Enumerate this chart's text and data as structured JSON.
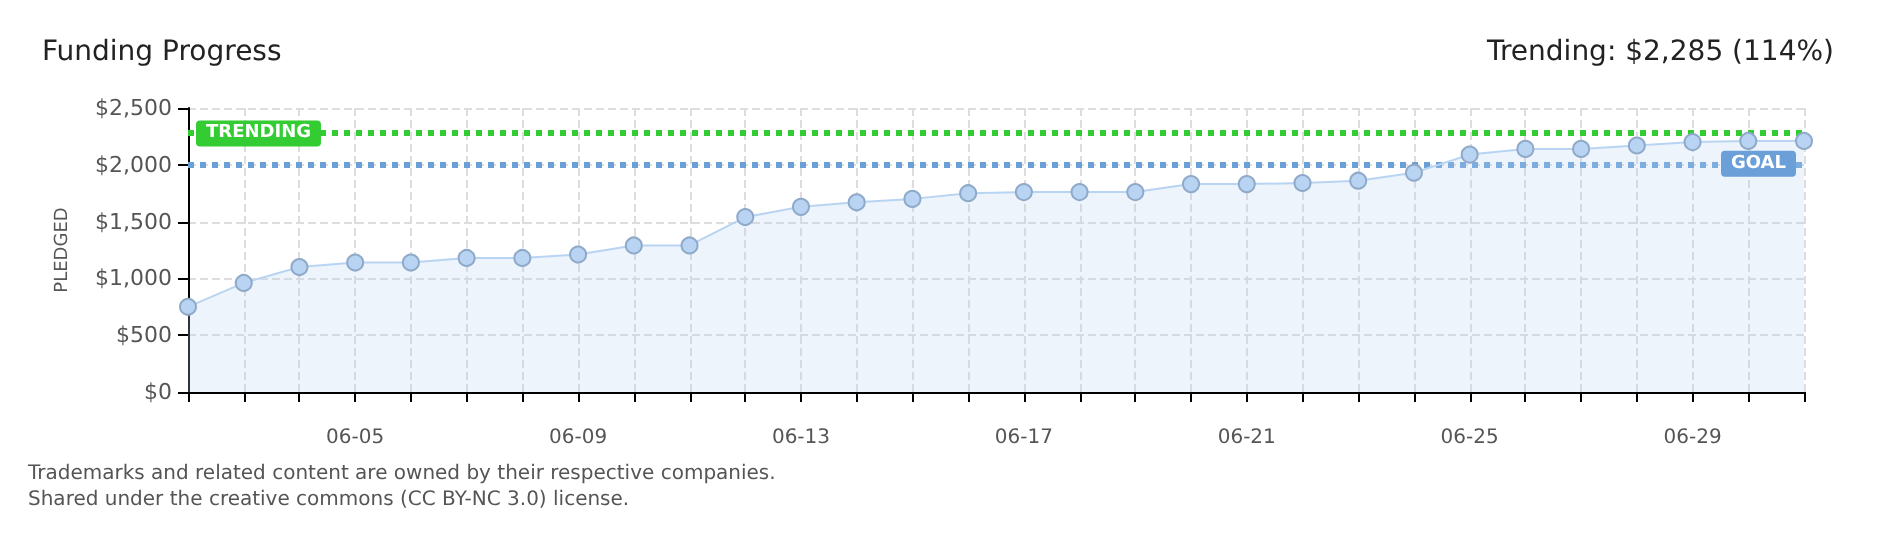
{
  "chart_data": {
    "type": "area",
    "title": "Funding Progress",
    "ylabel": "PLEDGED",
    "annotations": [
      "Trending: $2,285 (114%)",
      "Trademarks and related content are owned by their respective companies.",
      "Shared under the creative commons (CC BY-NC 3.0) license."
    ],
    "categories": [
      null,
      null,
      null,
      "06-05",
      null,
      null,
      null,
      "06-09",
      null,
      null,
      null,
      "06-13",
      null,
      null,
      null,
      "06-17",
      null,
      null,
      null,
      "06-21",
      null,
      null,
      null,
      "06-25",
      null,
      null,
      null,
      "06-29",
      null,
      null
    ],
    "series": [
      {
        "color": "#b8d4f2",
        "values": [
          750,
          960,
          1100,
          1140,
          1140,
          1180,
          1180,
          1210,
          1290,
          1290,
          1540,
          1630,
          1670,
          1700,
          1750,
          1760,
          1760,
          1760,
          1830,
          1830,
          1840,
          1860,
          1930,
          2090,
          2140,
          2140,
          2170,
          2200,
          2210,
          2210
        ]
      }
    ],
    "ylim": [
      0,
      2500
    ],
    "yticks": [
      {
        "value": 0,
        "label": "$0"
      },
      {
        "value": 500,
        "label": "$500"
      },
      {
        "value": 1000,
        "label": "$1,000"
      },
      {
        "value": 1500,
        "label": "$1,500"
      },
      {
        "value": 2000,
        "label": "$2,000"
      },
      {
        "value": 2500,
        "label": "$2,500"
      }
    ],
    "ref_lines": [
      {
        "axis": "y",
        "value": 2285,
        "label": "TRENDING",
        "color": "#33cc33",
        "line_style": "dotted"
      },
      {
        "axis": "y",
        "value": 2000,
        "label": "GOAL",
        "color": "#6a9fd8",
        "line_style": "dotted"
      }
    ],
    "grid": true,
    "marker": "circle"
  }
}
